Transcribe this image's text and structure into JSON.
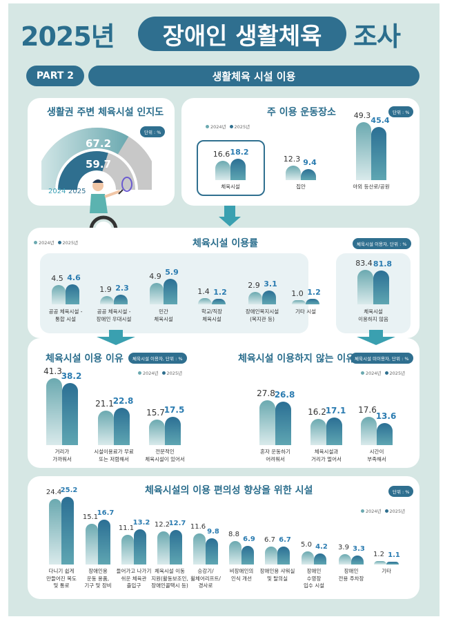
{
  "header": {
    "year": "2025년",
    "title": "장애인 생활체육",
    "suffix": "조사"
  },
  "part": {
    "label": "PART 2",
    "title": "생활체육 시설 이용"
  },
  "legend": {
    "y2024": "2024년",
    "y2025": "2025년"
  },
  "colors": {
    "accent": "#2f6f8f",
    "light": "#6ba9b0",
    "bg": "#d6e7e4"
  },
  "awareness": {
    "title": "생활권 주변 체육시설 인지도",
    "unit": "단위 : %",
    "value_2024": 67.2,
    "value_2025": 59.7,
    "label_2024": "67.2",
    "label_2025": "59.7",
    "year_2024": "2024",
    "year_2025": "2025"
  },
  "main_place": {
    "title": "주 이용 운동장소",
    "unit": "단위 : %",
    "categories": [
      "체육시설",
      "집안",
      "야외 등산로/공원"
    ],
    "v2024": [
      16.6,
      12.3,
      49.3
    ],
    "v2025": [
      18.2,
      9.4,
      45.4
    ]
  },
  "usage_rate": {
    "title": "체육시설 이용률",
    "unit": "체육시설 이용자, 단위 : %",
    "categories": [
      "공공 체육시설 -\n통합 시설",
      "공공 체육시설 -\n장애인 우대시설",
      "민간\n체육시설",
      "학교/직장\n체육시설",
      "장애인복지시설\n(복지관 등)",
      "기타 시설"
    ],
    "v2024": [
      4.5,
      1.9,
      4.9,
      1.4,
      2.9,
      1.0
    ],
    "v2025": [
      4.6,
      2.3,
      5.9,
      1.2,
      3.1,
      1.2
    ]
  },
  "non_usage": {
    "categories": [
      "체육시설\n이용하지 않음"
    ],
    "v2024": [
      83.4
    ],
    "v2025": [
      81.8
    ]
  },
  "reasons_use": {
    "title": "체육시설 이용 이유",
    "unit": "체육시설 이용자, 단위 : %",
    "categories": [
      "거리가\n가까워서",
      "시설이용료가 무료\n또는 저렴해서",
      "전문적인\n체육시설이 있어서"
    ],
    "v2024": [
      41.3,
      21.1,
      15.7
    ],
    "v2025": [
      38.2,
      22.8,
      17.5
    ]
  },
  "reasons_nonuse": {
    "title": "체육시설 이용하지 않는 이유",
    "unit": "체육시설 미이용자, 단위 : %",
    "categories": [
      "혼자 운동하기\n어려워서",
      "체육시설과\n거리가 멀어서",
      "시간이\n부족해서"
    ],
    "v2024": [
      27.8,
      16.2,
      17.6
    ],
    "v2025": [
      26.8,
      17.1,
      13.6
    ]
  },
  "convenience": {
    "title": "체육시설의 이용 편의성 향상을 위한 시설",
    "unit": "단위 : %",
    "categories": [
      "다니기 쉽게\n만들어진 복도\n및 통로",
      "장애인용\n운동 용품,\n기구 및 장비",
      "들어가고 나가기\n쉬운 체육관\n출입구",
      "체육시설 이동\n지원(활동보조인,\n장애인콜택시 등)",
      "승강기/\n휠체어리프트/\n경사로",
      "비장애인의\n인식 개선",
      "장애인용 샤워실\n및 탈의실",
      "장애인\n수영장\n입수 시설",
      "장애인\n전용 주차장",
      "기타"
    ],
    "v2024": [
      24.4,
      15.1,
      11.1,
      12.2,
      11.6,
      8.8,
      6.7,
      5.0,
      3.9,
      1.2
    ],
    "v2025": [
      25.2,
      16.7,
      13.2,
      12.7,
      9.8,
      6.9,
      6.7,
      4.2,
      3.3,
      1.1
    ]
  }
}
